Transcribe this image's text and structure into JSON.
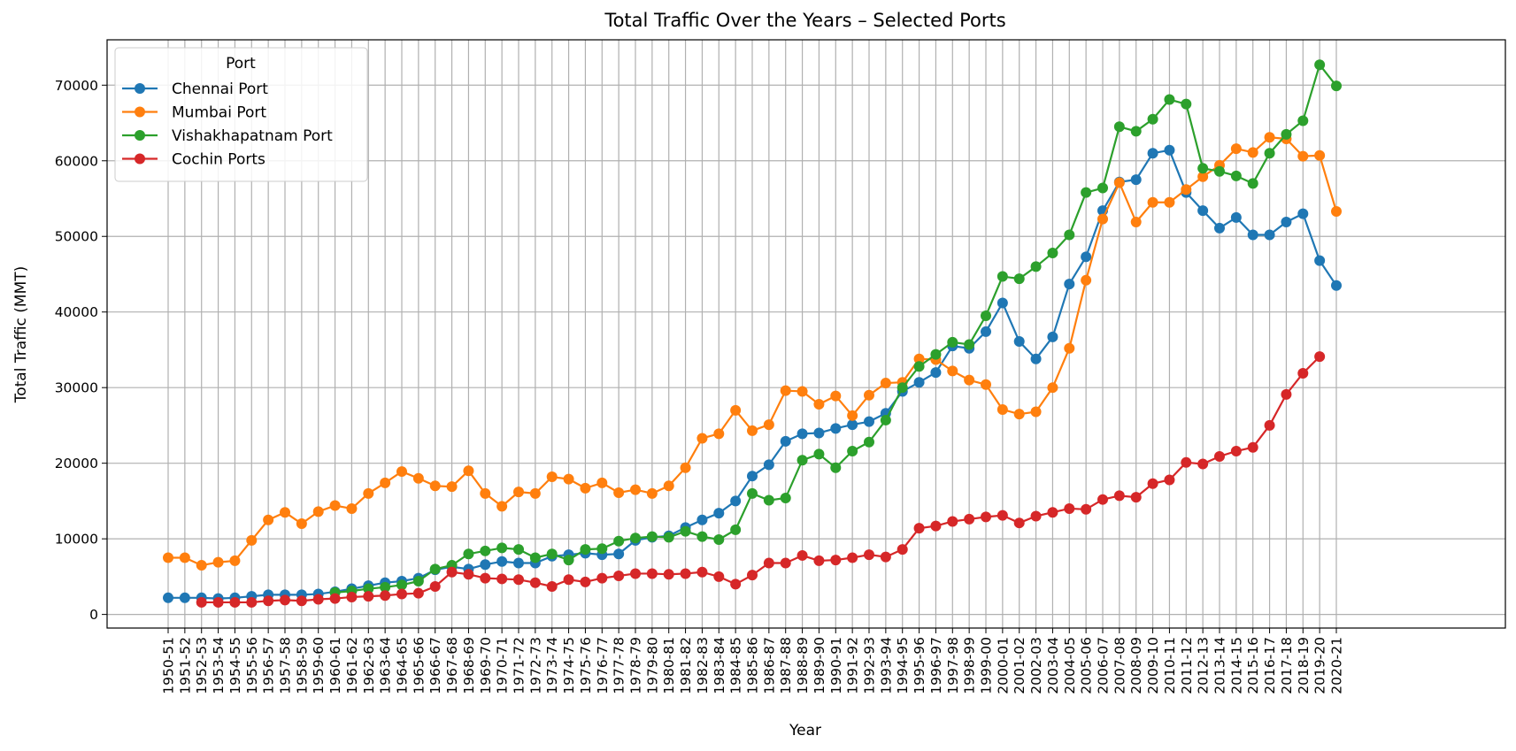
{
  "chart_data": {
    "type": "line",
    "title": "Total Traffic Over the Years – Selected Ports",
    "xlabel": "Year",
    "ylabel": "Total Traffic (MMT)",
    "ylim": [
      -1800,
      76000
    ],
    "yticks": [
      0,
      10000,
      20000,
      30000,
      40000,
      50000,
      60000,
      70000
    ],
    "ytick_labels": [
      "0",
      "10000",
      "20000",
      "30000",
      "40000",
      "50000",
      "60000",
      "70000"
    ],
    "grid": true,
    "legend_title": "Port",
    "legend_position": "top-left",
    "categories": [
      "1950-51",
      "1951-52",
      "1952-53",
      "1953-54",
      "1954-55",
      "1955-56",
      "1956-57",
      "1957-58",
      "1958-59",
      "1959-60",
      "1960-61",
      "1961-62",
      "1962-63",
      "1963-64",
      "1964-65",
      "1965-66",
      "1966-67",
      "1967-68",
      "1968-69",
      "1969-70",
      "1970-71",
      "1971-72",
      "1972-73",
      "1973-74",
      "1974-75",
      "1975-76",
      "1976-77",
      "1977-78",
      "1978-79",
      "1979-80",
      "1980-81",
      "1981-82",
      "1982-83",
      "1983-84",
      "1984-85",
      "1985-86",
      "1986-87",
      "1987-88",
      "1988-89",
      "1989-90",
      "1990-91",
      "1991-92",
      "1992-93",
      "1993-94",
      "1994-95",
      "1995-96",
      "1996-97",
      "1997-98",
      "1998-99",
      "1999-00",
      "2000-01",
      "2001-02",
      "2002-03",
      "2003-04",
      "2004-05",
      "2005-06",
      "2006-07",
      "2007-08",
      "2008-09",
      "2009-10",
      "2010-11",
      "2011-12",
      "2012-13",
      "2013-14",
      "2014-15",
      "2015-16",
      "2016-17",
      "2017-18",
      "2018-19",
      "2019-20",
      "2020-21"
    ],
    "series": [
      {
        "name": "Chennai Port",
        "color": "#1f77b4",
        "values": [
          2200,
          2200,
          2200,
          2100,
          2200,
          2400,
          2600,
          2600,
          2600,
          2700,
          3000,
          3400,
          3800,
          4200,
          4400,
          4800,
          5900,
          6300,
          6000,
          6600,
          7000,
          6800,
          6800,
          7700,
          7900,
          8100,
          7900,
          8000,
          9800,
          10200,
          10400,
          11500,
          12500,
          13400,
          15000,
          18300,
          19800,
          22900,
          23900,
          24000,
          24600,
          25100,
          25500,
          26600,
          29500,
          30700,
          32000,
          35500,
          35200,
          37400,
          41200,
          36100,
          33800,
          36700,
          43700,
          47300,
          53400,
          57200,
          57500,
          61000,
          61400,
          55800,
          53400,
          51100,
          52500,
          50200,
          50200,
          51900,
          53000,
          46800,
          43500
        ]
      },
      {
        "name": "Mumbai Port",
        "color": "#ff7f0e",
        "values": [
          7500,
          7500,
          6500,
          6900,
          7100,
          9800,
          12500,
          13500,
          12000,
          13600,
          14400,
          14000,
          16000,
          17400,
          18900,
          18000,
          17000,
          16900,
          19000,
          16000,
          14300,
          16200,
          16000,
          18200,
          17900,
          16700,
          17400,
          16100,
          16500,
          16000,
          17000,
          19400,
          23300,
          23900,
          27000,
          24300,
          25100,
          29600,
          29500,
          27800,
          28900,
          26300,
          29000,
          30600,
          30700,
          33800,
          33700,
          32200,
          31000,
          30400,
          27100,
          26500,
          26800,
          30000,
          35200,
          44200,
          52300,
          57100,
          51900,
          54500,
          54500,
          56200,
          57900,
          59400,
          61600,
          61100,
          63100,
          62900,
          60600,
          60700,
          53300
        ]
      },
      {
        "name": "Vishakhapatnam Port",
        "color": "#2ca02c",
        "values": [
          null,
          null,
          null,
          null,
          null,
          null,
          null,
          null,
          null,
          null,
          2900,
          3100,
          3400,
          3600,
          3900,
          4400,
          6000,
          6500,
          8000,
          8400,
          8800,
          8600,
          7500,
          8000,
          7200,
          8600,
          8700,
          9700,
          10100,
          10300,
          10200,
          11000,
          10300,
          9900,
          11200,
          16000,
          15100,
          15400,
          20400,
          21200,
          19400,
          21600,
          22800,
          25700,
          30000,
          32800,
          34400,
          36000,
          35700,
          39500,
          44700,
          44400,
          46000,
          47800,
          50200,
          55800,
          56400,
          64500,
          63900,
          65500,
          68100,
          67500,
          59000,
          58600,
          58000,
          57000,
          61000,
          63500,
          65300,
          72700,
          69900
        ]
      },
      {
        "name": "Cochin Ports",
        "color": "#d62728",
        "values": [
          null,
          null,
          1600,
          1600,
          1600,
          1600,
          1800,
          1900,
          1800,
          2000,
          2100,
          2300,
          2400,
          2500,
          2700,
          2800,
          3700,
          5600,
          5300,
          4800,
          4700,
          4600,
          4200,
          3700,
          4600,
          4300,
          4800,
          5100,
          5400,
          5400,
          5300,
          5400,
          5600,
          5000,
          4000,
          5200,
          6800,
          6800,
          7800,
          7100,
          7200,
          7500,
          7900,
          7600,
          8600,
          11400,
          11700,
          12300,
          12600,
          12900,
          13100,
          12100,
          13000,
          13500,
          14000,
          13900,
          15200,
          15700,
          15500,
          17300,
          17800,
          20100,
          19900,
          20900,
          21600,
          22100,
          25000,
          29100,
          31900,
          34100,
          null
        ]
      }
    ]
  }
}
